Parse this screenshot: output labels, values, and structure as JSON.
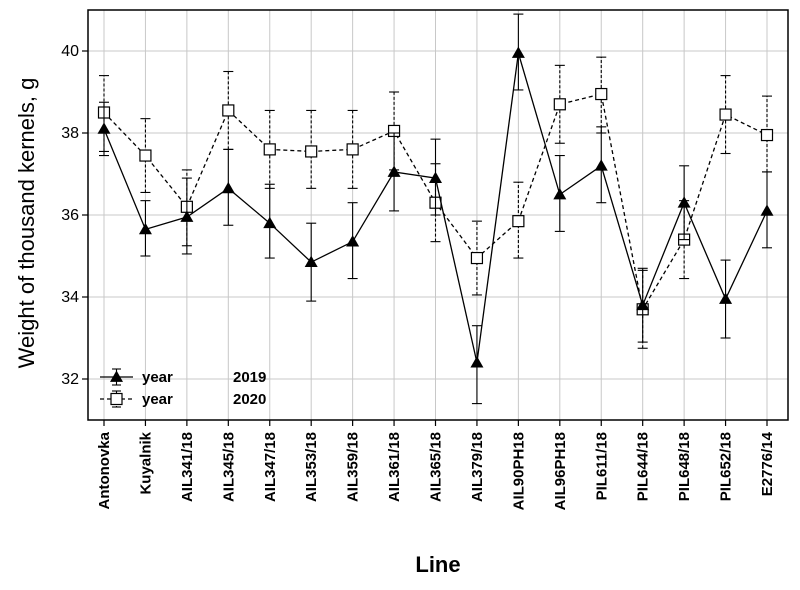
{
  "chart_data": {
    "type": "line",
    "title": "",
    "xlabel": "Line",
    "ylabel": "Weight of thousand kernels, g",
    "ylim": [
      31,
      41
    ],
    "yticks": [
      32,
      34,
      36,
      38,
      40
    ],
    "grid": true,
    "legend_position": "bottom-left",
    "categories": [
      "Antonovka",
      "Kuyalnik",
      "AIL341/18",
      "AIL345/18",
      "AIL347/18",
      "AIL353/18",
      "AIL359/18",
      "AIL361/18",
      "AIL365/18",
      "AIL379/18",
      "AIL90PH18",
      "AIL96PH18",
      "PIL611/18",
      "PIL644/18",
      "PIL648/18",
      "PIL652/18",
      "E2776/14"
    ],
    "series": [
      {
        "name": "2019",
        "legend_prefix": "year",
        "line_style": "solid",
        "marker": "filled-triangle",
        "values": [
          38.1,
          35.65,
          35.95,
          36.65,
          35.8,
          34.85,
          35.35,
          37.05,
          36.9,
          32.4,
          39.95,
          36.5,
          37.2,
          33.8,
          36.3,
          33.95,
          36.1
        ],
        "err_low": [
          37.45,
          35.0,
          35.05,
          35.75,
          34.95,
          33.9,
          34.45,
          36.1,
          36.0,
          31.4,
          39.05,
          35.6,
          36.3,
          32.9,
          35.4,
          33.0,
          35.2
        ],
        "err_high": [
          38.75,
          36.35,
          36.9,
          37.6,
          36.75,
          35.8,
          36.3,
          38.0,
          37.85,
          33.3,
          40.9,
          37.45,
          38.15,
          34.7,
          37.2,
          34.9,
          37.05
        ]
      },
      {
        "name": "2020",
        "legend_prefix": "year",
        "line_style": "dashed",
        "marker": "open-square",
        "values": [
          38.5,
          37.45,
          36.2,
          38.55,
          37.6,
          37.55,
          37.6,
          38.05,
          36.3,
          34.95,
          35.85,
          38.7,
          38.95,
          33.7,
          35.4,
          38.45,
          37.95
        ],
        "err_low": [
          37.55,
          36.55,
          35.25,
          37.6,
          36.65,
          36.65,
          36.65,
          37.1,
          35.35,
          34.05,
          34.95,
          37.75,
          38.0,
          32.75,
          34.45,
          37.5,
          37.05
        ],
        "err_high": [
          39.4,
          38.35,
          37.1,
          39.5,
          38.55,
          38.55,
          38.55,
          39.0,
          37.25,
          35.85,
          36.8,
          39.65,
          39.85,
          34.65,
          36.35,
          39.4,
          38.9
        ]
      }
    ]
  }
}
